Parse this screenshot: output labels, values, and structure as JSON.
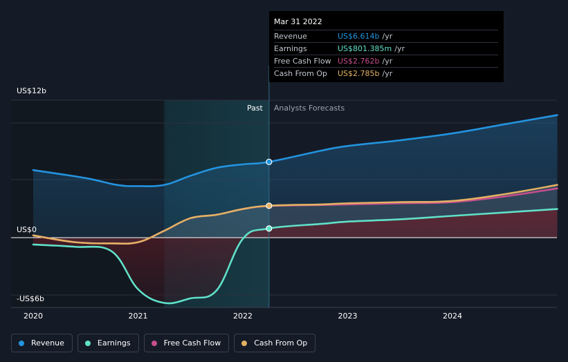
{
  "chart_data": {
    "type": "line",
    "y_axis_labels": [
      "US$12b",
      "US$0",
      "-US$6b"
    ],
    "y_axis_values": [
      12,
      0,
      -6
    ],
    "x_tick_labels": [
      "2020",
      "2021",
      "2022",
      "2023",
      "2024"
    ],
    "x_tick_values": [
      2020,
      2021,
      2022,
      2023,
      2024
    ],
    "ylim": [
      -6.3,
      14
    ],
    "xlim": [
      2019.9,
      2025.0
    ],
    "past_label": "Past",
    "forecast_label": "Analysts Forecasts",
    "past_shade_start": 2021.25,
    "divider_x": 2022.25,
    "series": [
      {
        "name": "Revenue",
        "color": "#2394df",
        "x": [
          2020.0,
          2020.5,
          2020.8,
          2021.0,
          2021.25,
          2021.5,
          2021.75,
          2022.0,
          2022.25,
          2022.75,
          2023.0,
          2023.5,
          2024.0,
          2024.5,
          2025.0
        ],
        "values": [
          5.9,
          5.2,
          4.6,
          4.5,
          4.6,
          5.4,
          6.1,
          6.4,
          6.614,
          7.6,
          8.0,
          8.5,
          9.1,
          9.9,
          10.7
        ]
      },
      {
        "name": "Earnings",
        "color": "#60e1c9",
        "x": [
          2020.0,
          2020.4,
          2020.75,
          2021.0,
          2021.25,
          2021.5,
          2021.75,
          2022.0,
          2022.25,
          2022.75,
          2023.0,
          2023.5,
          2024.0,
          2024.5,
          2025.0
        ],
        "values": [
          -0.6,
          -0.8,
          -1.2,
          -4.5,
          -5.7,
          -5.3,
          -4.6,
          -0.1,
          0.801,
          1.2,
          1.4,
          1.6,
          1.9,
          2.2,
          2.5
        ]
      },
      {
        "name": "Free Cash Flow",
        "color": "#c64f8d",
        "x": [
          2020.0,
          2020.4,
          2020.75,
          2021.0,
          2021.25,
          2021.5,
          2021.75,
          2022.0,
          2022.25,
          2022.75,
          2023.0,
          2023.5,
          2024.0,
          2024.5,
          2025.0
        ],
        "values": [
          0.2,
          -0.4,
          -0.5,
          -0.4,
          0.6,
          1.7,
          2.0,
          2.5,
          2.762,
          2.85,
          2.9,
          3.0,
          3.1,
          3.6,
          4.3
        ]
      },
      {
        "name": "Cash From Op",
        "color": "#e3b163",
        "x": [
          2020.0,
          2020.4,
          2020.75,
          2021.0,
          2021.25,
          2021.5,
          2021.75,
          2022.0,
          2022.25,
          2022.75,
          2023.0,
          2023.5,
          2024.0,
          2024.5,
          2025.0
        ],
        "values": [
          0.2,
          -0.4,
          -0.5,
          -0.4,
          0.6,
          1.7,
          2.0,
          2.5,
          2.785,
          2.9,
          3.0,
          3.1,
          3.2,
          3.8,
          4.6
        ]
      }
    ]
  },
  "tooltip": {
    "date": "Mar 31 2022",
    "rows": [
      {
        "label": "Revenue",
        "value": "US$6.614b",
        "unit": "/yr",
        "color": "#2394df"
      },
      {
        "label": "Earnings",
        "value": "US$801.385m",
        "unit": "/yr",
        "color": "#60e1c9"
      },
      {
        "label": "Free Cash Flow",
        "value": "US$2.762b",
        "unit": "/yr",
        "color": "#c64f8d"
      },
      {
        "label": "Cash From Op",
        "value": "US$2.785b",
        "unit": "/yr",
        "color": "#e3b163"
      }
    ]
  },
  "legend": [
    {
      "label": "Revenue",
      "color": "#2394df"
    },
    {
      "label": "Earnings",
      "color": "#60e1c9"
    },
    {
      "label": "Free Cash Flow",
      "color": "#c64f8d"
    },
    {
      "label": "Cash From Op",
      "color": "#e3b163"
    }
  ]
}
